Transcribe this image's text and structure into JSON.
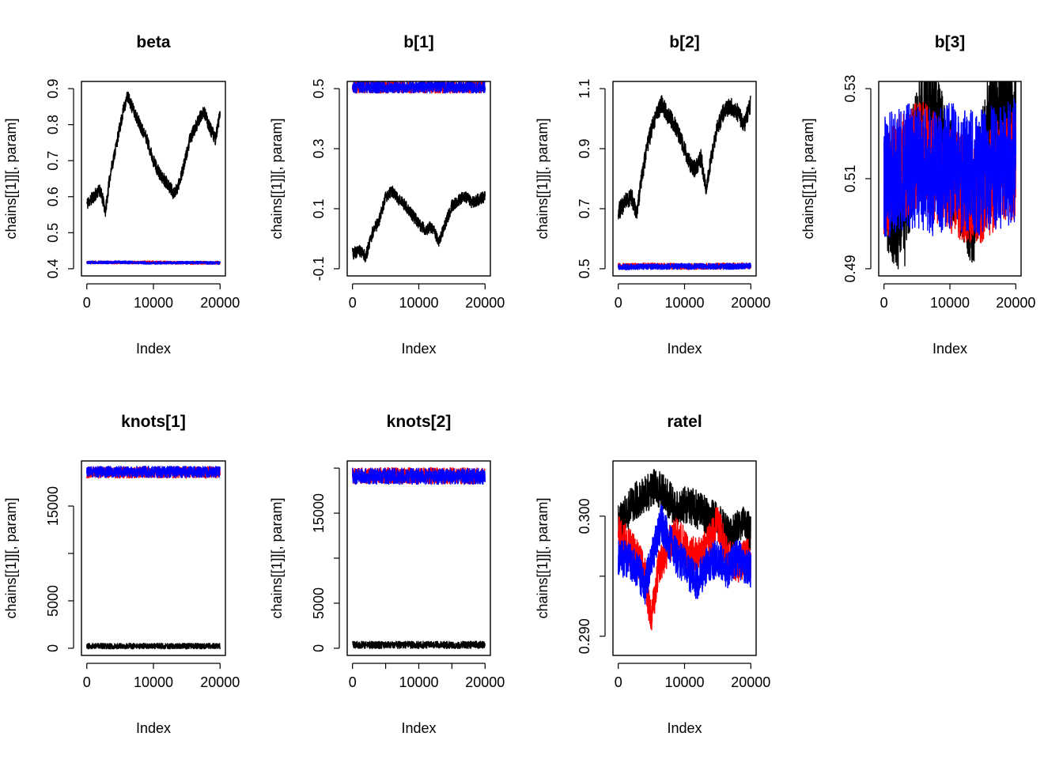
{
  "colors": {
    "chain_1": "#000000",
    "chain_2": "#ff0000",
    "chain_3": "#0000ff"
  },
  "chart_data": [
    {
      "type": "line",
      "title": "beta",
      "xlabel": "Index",
      "ylabel": "chains[[1]][, param]",
      "xlim": [
        0,
        20000
      ],
      "ylim": [
        0.4,
        0.9
      ],
      "xticks": [
        0,
        10000,
        20000
      ],
      "xtick_labels": [
        "0",
        "10000",
        "20000"
      ],
      "yticks": [
        0.4,
        0.5,
        0.6,
        0.7,
        0.8,
        0.9
      ],
      "ytick_labels": [
        "0.4",
        "0.5",
        "0.6",
        "0.7",
        "0.8",
        "0.9"
      ],
      "series": [
        {
          "color": "#000000",
          "band": 0.018,
          "x": [
            0,
            1000,
            2000,
            2800,
            3500,
            4500,
            5500,
            6100,
            7000,
            8000,
            9000,
            10000,
            11000,
            12000,
            13000,
            13500,
            14500,
            15500,
            16500,
            17500,
            18500,
            19300,
            20000
          ],
          "y": [
            0.58,
            0.6,
            0.62,
            0.56,
            0.66,
            0.75,
            0.84,
            0.88,
            0.84,
            0.8,
            0.76,
            0.7,
            0.66,
            0.64,
            0.61,
            0.62,
            0.68,
            0.76,
            0.8,
            0.84,
            0.79,
            0.76,
            0.83
          ]
        },
        {
          "color": "#ff0000",
          "band": 0.004,
          "x": [
            0,
            5000,
            10000,
            15000,
            20000
          ],
          "y": [
            0.418,
            0.417,
            0.418,
            0.416,
            0.417
          ]
        },
        {
          "color": "#0000ff",
          "band": 0.004,
          "x": [
            0,
            5000,
            10000,
            15000,
            20000
          ],
          "y": [
            0.417,
            0.418,
            0.416,
            0.417,
            0.416
          ]
        }
      ]
    },
    {
      "type": "line",
      "title": "b[1]",
      "xlabel": "Index",
      "ylabel": "chains[[1]][, param]",
      "xlim": [
        0,
        20000
      ],
      "ylim": [
        -0.1,
        0.5
      ],
      "xticks": [
        0,
        10000,
        20000
      ],
      "xtick_labels": [
        "0",
        "10000",
        "20000"
      ],
      "yticks": [
        -0.1,
        0.1,
        0.3,
        0.5
      ],
      "ytick_labels": [
        "-0.1",
        "0.1",
        "0.3",
        "0.5"
      ],
      "series": [
        {
          "color": "#000000",
          "band": 0.02,
          "x": [
            0,
            1000,
            2000,
            3000,
            4000,
            5000,
            6000,
            7000,
            8000,
            9000,
            10000,
            11000,
            12000,
            13000,
            14000,
            15000,
            16000,
            17000,
            18000,
            19000,
            20000
          ],
          "y": [
            -0.05,
            -0.04,
            -0.06,
            0.02,
            0.06,
            0.14,
            0.16,
            0.13,
            0.11,
            0.08,
            0.05,
            0.03,
            0.04,
            -0.01,
            0.05,
            0.11,
            0.13,
            0.14,
            0.12,
            0.13,
            0.14
          ]
        },
        {
          "color": "#ff0000",
          "band": 0.02,
          "x": [
            0,
            5000,
            10000,
            15000,
            20000
          ],
          "y": [
            0.505,
            0.505,
            0.505,
            0.505,
            0.505
          ]
        },
        {
          "color": "#0000ff",
          "band": 0.02,
          "x": [
            0,
            5000,
            10000,
            15000,
            20000
          ],
          "y": [
            0.505,
            0.505,
            0.505,
            0.505,
            0.505
          ]
        }
      ]
    },
    {
      "type": "line",
      "title": "b[2]",
      "xlabel": "Index",
      "ylabel": "chains[[1]][, param]",
      "xlim": [
        0,
        20000
      ],
      "ylim": [
        0.5,
        1.1
      ],
      "xticks": [
        0,
        10000,
        20000
      ],
      "xtick_labels": [
        "0",
        "10000",
        "20000"
      ],
      "yticks": [
        0.5,
        0.7,
        0.9,
        1.1
      ],
      "ytick_labels": [
        "0.5",
        "0.7",
        "0.9",
        "1.1"
      ],
      "series": [
        {
          "color": "#000000",
          "band": 0.03,
          "x": [
            0,
            1000,
            2000,
            2800,
            3500,
            4500,
            5500,
            6500,
            7500,
            8500,
            9500,
            10500,
            11500,
            12500,
            13300,
            14000,
            15000,
            16000,
            17000,
            18000,
            19000,
            20000
          ],
          "y": [
            0.69,
            0.72,
            0.74,
            0.68,
            0.8,
            0.92,
            1.0,
            1.05,
            1.01,
            0.98,
            0.93,
            0.86,
            0.83,
            0.87,
            0.76,
            0.87,
            0.97,
            1.03,
            1.04,
            1.02,
            0.98,
            1.05
          ]
        },
        {
          "color": "#ff0000",
          "band": 0.01,
          "x": [
            0,
            5000,
            10000,
            15000,
            20000
          ],
          "y": [
            0.508,
            0.51,
            0.507,
            0.509,
            0.51
          ]
        },
        {
          "color": "#0000ff",
          "band": 0.01,
          "x": [
            0,
            5000,
            10000,
            15000,
            20000
          ],
          "y": [
            0.506,
            0.507,
            0.508,
            0.507,
            0.509
          ]
        }
      ]
    },
    {
      "type": "line",
      "title": "b[3]",
      "xlabel": "Index",
      "ylabel": "chains[[1]][, param]",
      "xlim": [
        0,
        20000
      ],
      "ylim": [
        0.49,
        0.53
      ],
      "xticks": [
        0,
        10000,
        20000
      ],
      "xtick_labels": [
        "0",
        "10000",
        "20000"
      ],
      "yticks": [
        0.49,
        0.51,
        0.53
      ],
      "ytick_labels": [
        "0.49",
        "0.51",
        "0.53"
      ],
      "series": [
        {
          "color": "#000000",
          "band": 0.012,
          "x": [
            0,
            1500,
            3000,
            4500,
            6000,
            7500,
            9000,
            10500,
            12000,
            13500,
            15000,
            16500,
            18000,
            19000,
            20000
          ],
          "y": [
            0.507,
            0.503,
            0.5,
            0.516,
            0.526,
            0.526,
            0.516,
            0.512,
            0.508,
            0.502,
            0.514,
            0.526,
            0.528,
            0.524,
            0.522
          ]
        },
        {
          "color": "#ff0000",
          "band": 0.012,
          "x": [
            0,
            2000,
            4000,
            6000,
            8000,
            10000,
            12000,
            14000,
            16000,
            18000,
            20000
          ],
          "y": [
            0.507,
            0.512,
            0.514,
            0.516,
            0.512,
            0.51,
            0.508,
            0.507,
            0.509,
            0.512,
            0.513
          ]
        },
        {
          "color": "#0000ff",
          "band": 0.014,
          "x": [
            0,
            2000,
            4000,
            6000,
            8000,
            10000,
            12000,
            14000,
            16000,
            18000,
            20000
          ],
          "y": [
            0.51,
            0.512,
            0.513,
            0.512,
            0.511,
            0.513,
            0.512,
            0.511,
            0.512,
            0.513,
            0.514
          ]
        }
      ]
    },
    {
      "type": "line",
      "title": "knots[1]",
      "xlabel": "Index",
      "ylabel": "chains[[1]][, param]",
      "xlim": [
        0,
        20000
      ],
      "ylim": [
        0,
        19000
      ],
      "xticks": [
        0,
        10000,
        20000
      ],
      "xtick_labels": [
        "0",
        "10000",
        "20000"
      ],
      "yticks": [
        0,
        5000,
        10000,
        15000
      ],
      "ytick_labels": [
        "0",
        "5000",
        "",
        "15000"
      ],
      "series": [
        {
          "color": "#000000",
          "band": 300,
          "x": [
            0,
            5000,
            10000,
            15000,
            20000
          ],
          "y": [
            230,
            220,
            230,
            220,
            230
          ]
        },
        {
          "color": "#ff0000",
          "band": 600,
          "x": [
            0,
            5000,
            10000,
            15000,
            20000
          ],
          "y": [
            18550,
            18550,
            18550,
            18550,
            18550
          ]
        },
        {
          "color": "#0000ff",
          "band": 600,
          "x": [
            0,
            5000,
            10000,
            15000,
            20000
          ],
          "y": [
            18600,
            18600,
            18600,
            18600,
            18600
          ]
        }
      ]
    },
    {
      "type": "line",
      "title": "knots[2]",
      "xlabel": "Index",
      "ylabel": "chains[[1]][, param]",
      "xlim": [
        0,
        20000
      ],
      "ylim": [
        0,
        20000
      ],
      "xticks": [
        0,
        5000,
        10000,
        15000,
        20000
      ],
      "xtick_labels": [
        "0",
        "",
        "10000",
        "",
        "20000"
      ],
      "yticks": [
        0,
        5000,
        10000,
        15000,
        20000
      ],
      "ytick_labels": [
        "0",
        "5000",
        "",
        "15000",
        ""
      ],
      "series": [
        {
          "color": "#000000",
          "band": 400,
          "x": [
            0,
            5000,
            10000,
            15000,
            20000
          ],
          "y": [
            380,
            360,
            370,
            360,
            380
          ]
        },
        {
          "color": "#ff0000",
          "band": 900,
          "x": [
            0,
            5000,
            10000,
            15000,
            20000
          ],
          "y": [
            19150,
            19150,
            19150,
            19150,
            19150
          ]
        },
        {
          "color": "#0000ff",
          "band": 900,
          "x": [
            0,
            5000,
            10000,
            15000,
            20000
          ],
          "y": [
            19100,
            19100,
            19100,
            19100,
            19100
          ]
        }
      ]
    },
    {
      "type": "line",
      "title": "ratel",
      "xlabel": "Index",
      "ylabel": "chains[[1]][, param]",
      "xlim": [
        0,
        20000
      ],
      "ylim": [
        0.289,
        0.304
      ],
      "xticks": [
        0,
        10000,
        20000
      ],
      "xtick_labels": [
        "0",
        "10000",
        "20000"
      ],
      "yticks": [
        0.29,
        0.295,
        0.3
      ],
      "ytick_labels": [
        "0.290",
        "",
        "0.300"
      ],
      "series": [
        {
          "color": "#000000",
          "band": 0.0016,
          "x": [
            0,
            1500,
            3000,
            4500,
            5500,
            6500,
            7500,
            9000,
            10500,
            12000,
            13500,
            15000,
            16500,
            18000,
            19000,
            20000
          ],
          "y": [
            0.2995,
            0.3005,
            0.3015,
            0.302,
            0.3025,
            0.302,
            0.3015,
            0.3005,
            0.301,
            0.3005,
            0.3,
            0.2995,
            0.2985,
            0.299,
            0.2995,
            0.2985
          ]
        },
        {
          "color": "#ff0000",
          "band": 0.0016,
          "x": [
            0,
            1500,
            3000,
            4000,
            5000,
            6000,
            7500,
            9000,
            10500,
            12000,
            13500,
            15000,
            16500,
            18000,
            19000,
            20000
          ],
          "y": [
            0.2985,
            0.2975,
            0.2965,
            0.295,
            0.2915,
            0.2955,
            0.2975,
            0.2985,
            0.297,
            0.2965,
            0.2975,
            0.2995,
            0.2965,
            0.296,
            0.2965,
            0.2965
          ]
        },
        {
          "color": "#0000ff",
          "band": 0.0016,
          "x": [
            0,
            1500,
            3000,
            4000,
            5500,
            6500,
            7500,
            9000,
            10500,
            12000,
            13500,
            15000,
            16500,
            18000,
            19000,
            20000
          ],
          "y": [
            0.2965,
            0.2965,
            0.2955,
            0.294,
            0.2975,
            0.2995,
            0.298,
            0.2965,
            0.2955,
            0.2945,
            0.296,
            0.2965,
            0.2955,
            0.2965,
            0.296,
            0.2955
          ]
        }
      ]
    }
  ]
}
